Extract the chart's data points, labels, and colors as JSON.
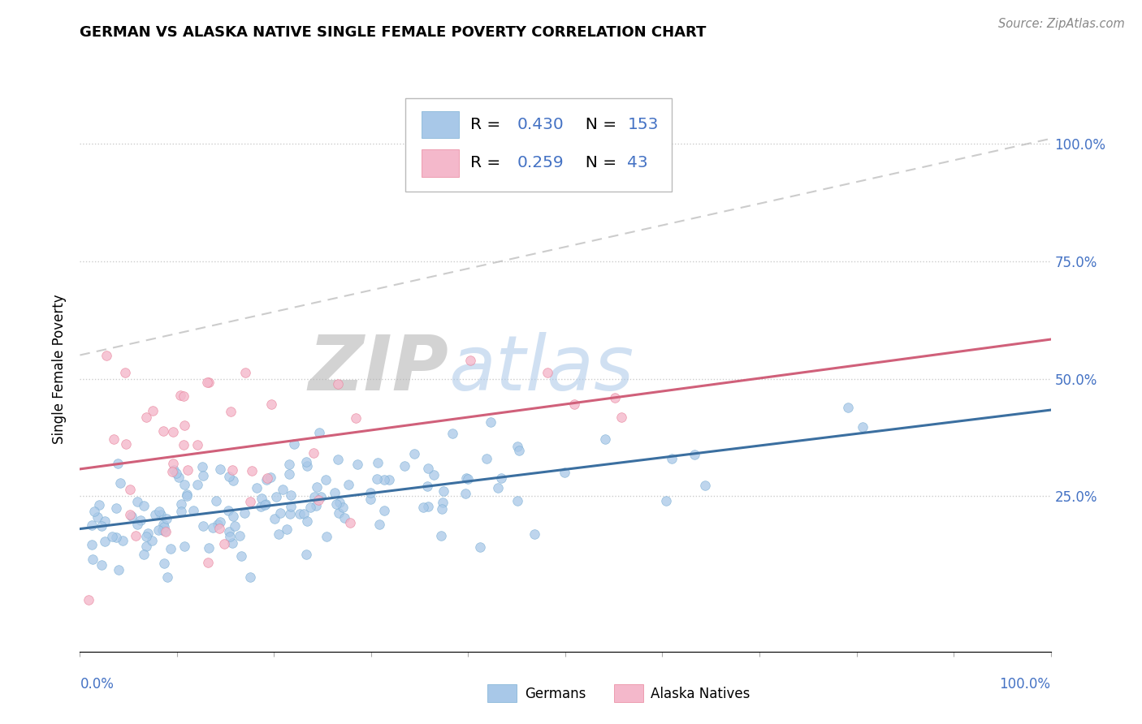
{
  "title": "GERMAN VS ALASKA NATIVE SINGLE FEMALE POVERTY CORRELATION CHART",
  "source": "Source: ZipAtlas.com",
  "ylabel": "Single Female Poverty",
  "xlim": [
    0.0,
    1.0
  ],
  "ylim": [
    -0.08,
    1.12
  ],
  "y_tick_labels": [
    "25.0%",
    "50.0%",
    "75.0%",
    "100.0%"
  ],
  "y_tick_values": [
    0.25,
    0.5,
    0.75,
    1.0
  ],
  "blue_color": "#a8c8e8",
  "blue_edge_color": "#7bafd4",
  "pink_color": "#f4b8cb",
  "pink_edge_color": "#e8849c",
  "trendline_blue": "#3b6fa0",
  "trendline_pink": "#d0607a",
  "watermark_zip": "ZIP",
  "watermark_atlas": "atlas",
  "background_color": "#ffffff",
  "legend_color": "#4472c4",
  "blue_scatter_seed": 42,
  "pink_scatter_seed": 99,
  "n_blue": 153,
  "n_pink": 43,
  "blue_slope": 0.28,
  "blue_intercept": 0.175,
  "pink_slope": 0.26,
  "pink_intercept": 0.295,
  "dashed_slope": 0.46,
  "dashed_intercept": 0.55
}
